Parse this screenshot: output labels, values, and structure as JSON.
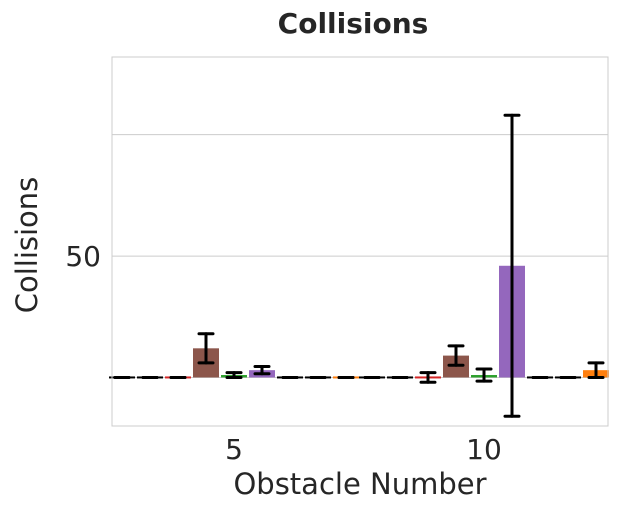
{
  "chart_data": {
    "type": "bar",
    "title": "Collisions",
    "xlabel": "Obstacle Number",
    "ylabel": "Collisions",
    "categories": [
      "5",
      "10"
    ],
    "yticks": [
      0,
      50,
      100
    ],
    "ytick_labels": [
      "",
      "50",
      ""
    ],
    "ylim": [
      -20,
      132
    ],
    "grid": true,
    "colors": {
      "brown": "#8c564b",
      "red": "#d62728",
      "green": "#2ca02c",
      "purple": "#9467bd",
      "orange": "#ff7f0e",
      "grid": "#cccccc",
      "errorbar": "#000000"
    },
    "series": [
      {
        "color": "#000000",
        "values": [
          0,
          0
        ],
        "errors": [
          0,
          0
        ]
      },
      {
        "color": "#000000",
        "values": [
          0,
          0
        ],
        "errors": [
          0,
          0
        ]
      },
      {
        "color": "#d62728",
        "values": [
          0,
          0
        ],
        "errors": [
          0,
          2
        ]
      },
      {
        "color": "#8c564b",
        "values": [
          12,
          9
        ],
        "errors": [
          6,
          4
        ]
      },
      {
        "color": "#2ca02c",
        "values": [
          1,
          1
        ],
        "errors": [
          1,
          2.5
        ]
      },
      {
        "color": "#9467bd",
        "values": [
          3,
          46
        ],
        "errors": [
          1.5,
          62
        ]
      },
      {
        "color": "#000000",
        "values": [
          0,
          0
        ],
        "errors": [
          0,
          0
        ]
      },
      {
        "color": "#000000",
        "values": [
          0,
          0
        ],
        "errors": [
          0,
          0
        ]
      },
      {
        "color": "#ff7f0e",
        "values": [
          0,
          3
        ],
        "errors": [
          0,
          3
        ]
      }
    ]
  }
}
